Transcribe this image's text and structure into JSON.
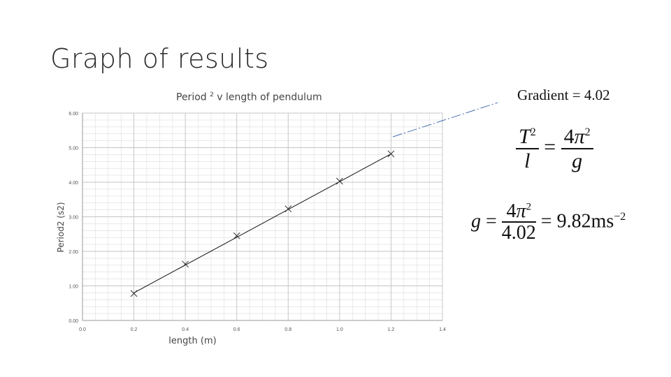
{
  "slide": {
    "title": "Graph of results",
    "gradient_label": "Gradient = 4.02"
  },
  "equations": {
    "eq1": {
      "num_var": "T",
      "num_exp": "2",
      "den_var": "l",
      "equals": "=",
      "rhs_num_coef": "4",
      "rhs_num_pi": "π",
      "rhs_num_exp": "2",
      "rhs_den": "g"
    },
    "eq2": {
      "lhs": "g",
      "equals": "=",
      "num_coef": "4",
      "num_pi": "π",
      "num_exp": "2",
      "den": "4.02",
      "equals2": "=",
      "result": "9.82ms",
      "result_exp": "−2"
    }
  },
  "chart_data": {
    "type": "scatter",
    "title": "Period",
    "title_sup": "2",
    "title_rest": " v length of pendulum",
    "xlabel": "length (m)",
    "ylabel": "Period2 (s2)",
    "xlim": [
      0,
      1.4
    ],
    "ylim": [
      0,
      6
    ],
    "x_ticks": [
      "0.0",
      "0.2",
      "0.4",
      "0.6",
      "0.8",
      "1.0",
      "1.2",
      "1.4"
    ],
    "y_ticks": [
      "0.00",
      "1.00",
      "2.00",
      "3.00",
      "4.00",
      "5.00",
      "6.00"
    ],
    "grid": true,
    "marker": "x",
    "points": [
      {
        "x": 0.2,
        "y": 0.78
      },
      {
        "x": 0.4,
        "y": 1.63
      },
      {
        "x": 0.6,
        "y": 2.45
      },
      {
        "x": 0.8,
        "y": 3.23
      },
      {
        "x": 1.0,
        "y": 4.03
      },
      {
        "x": 1.2,
        "y": 4.82
      }
    ],
    "trendline": {
      "x0": 0.2,
      "y0": 0.8,
      "x1": 1.2,
      "y1": 4.82
    },
    "colors": {
      "line": "#111111",
      "marker": "#333333",
      "grid": "#dcdcdc",
      "pointer": "#4a6fb0"
    }
  }
}
